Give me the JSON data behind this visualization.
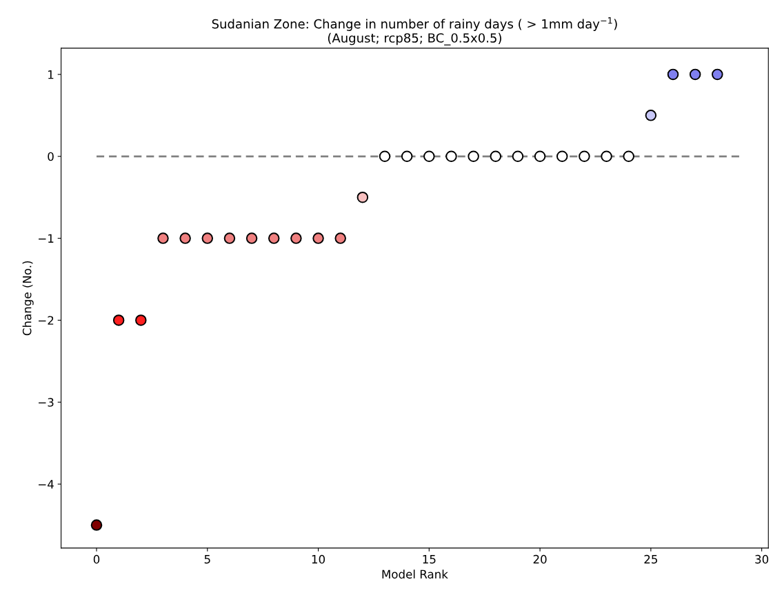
{
  "chart_data": {
    "type": "scatter",
    "title": "Sudanian Zone: Change in number of rainy days ( > 1mm day$^{−1}$)\n(August; rcp85; BC_0.5x0.5)",
    "xlabel": "Model Rank",
    "ylabel": "Change (No.)",
    "x": [
      0,
      1,
      2,
      3,
      4,
      5,
      6,
      7,
      8,
      9,
      10,
      11,
      12,
      13,
      14,
      15,
      16,
      17,
      18,
      19,
      20,
      21,
      22,
      23,
      24,
      25,
      26,
      27,
      28
    ],
    "series": [
      {
        "type": "line",
        "x": [
          0,
          29
        ],
        "values": [
          0,
          0
        ],
        "color": "#808080",
        "line_style": "dashed"
      },
      {
        "marker": "circle",
        "values": [
          -4.5,
          -2,
          -2,
          -1,
          -1,
          -1,
          -1,
          -1,
          -1,
          -1,
          -1,
          -1,
          -0.5,
          0,
          0,
          0,
          0,
          0,
          0,
          0,
          0,
          0,
          0,
          0,
          0,
          0.5,
          1,
          1,
          1
        ],
        "colors": [
          "#800000",
          "#ff2020",
          "#ff2020",
          "#f08080",
          "#f08080",
          "#f08080",
          "#f08080",
          "#f08080",
          "#f08080",
          "#f08080",
          "#f08080",
          "#f08080",
          "#f8c0c0",
          "#ffffff",
          "#ffffff",
          "#ffffff",
          "#ffffff",
          "#ffffff",
          "#ffffff",
          "#ffffff",
          "#ffffff",
          "#ffffff",
          "#ffffff",
          "#ffffff",
          "#ffffff",
          "#c8c8f8",
          "#8080f0",
          "#8080f0",
          "#8080f0"
        ]
      }
    ],
    "xlim": [
      -1.6,
      30.3
    ],
    "xticks": [
      0,
      5,
      10,
      15,
      20,
      25,
      30
    ],
    "ylim": [
      -4.78,
      1.32
    ],
    "yticks": [
      -4,
      -3,
      -2,
      -1,
      0,
      1
    ],
    "grid": false,
    "legend": false
  }
}
